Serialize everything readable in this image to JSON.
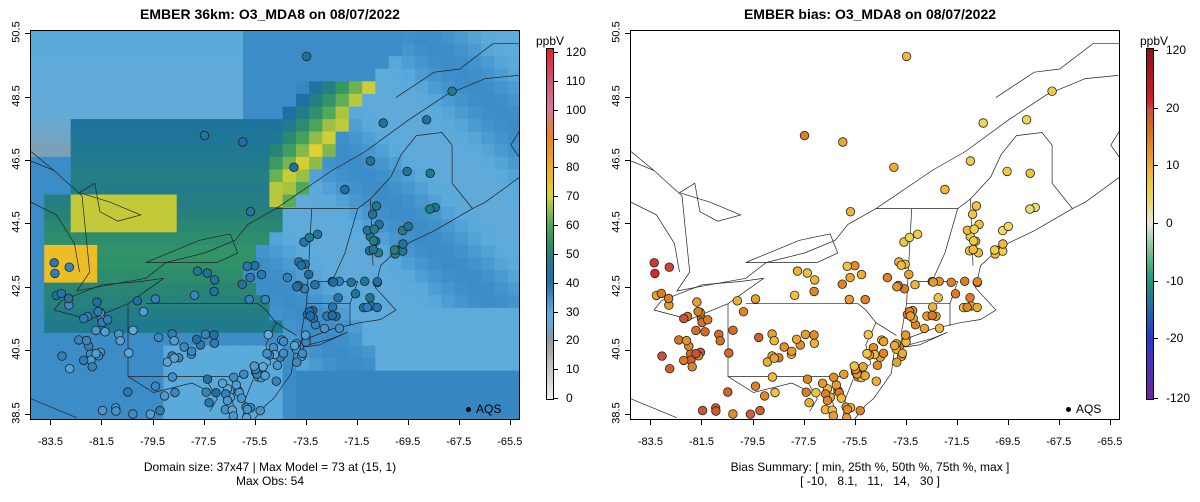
{
  "left": {
    "title": "EMBER 36km: O3_MDA8 on 08/07/2022",
    "x_ticks": [
      "-83.5",
      "-81.5",
      "-79.5",
      "-77.5",
      "-75.5",
      "-73.5",
      "-71.5",
      "-69.5",
      "-67.5",
      "-65.5"
    ],
    "y_ticks": [
      "38.5",
      "40.5",
      "42.5",
      "44.5",
      "46.5",
      "48.5",
      "50.5"
    ],
    "caption_line1": "Domain size: 37x47 | Max Model = 73 at (15, 1)",
    "caption_line2": "Max Obs: 54",
    "legend": "AQS",
    "colorbar": {
      "unit": "ppbV",
      "labels": [
        "0",
        "10",
        "20",
        "30",
        "40",
        "50",
        "60",
        "70",
        "80",
        "90",
        "100",
        "110",
        "120"
      ],
      "range": [
        0,
        120
      ]
    }
  },
  "right": {
    "title": "EMBER bias: O3_MDA8 on 08/07/2022",
    "x_ticks": [
      "-83.5",
      "-81.5",
      "-79.5",
      "-77.5",
      "-75.5",
      "-73.5",
      "-71.5",
      "-69.5",
      "-67.5",
      "-65.5"
    ],
    "y_ticks": [
      "38.5",
      "40.5",
      "42.5",
      "44.5",
      "46.5",
      "48.5",
      "50.5"
    ],
    "caption_line1": "Bias Summary: [ min, 25th %, 50th %, 75th %, max ]",
    "caption_line2": "[ -10,   8.1,   11,   14,   30 ]",
    "legend": "AQS",
    "colorbar": {
      "unit": "ppbV",
      "labels": [
        "120",
        "20",
        "10",
        "0",
        "-10",
        "-20",
        "-120"
      ]
    }
  },
  "map_data": {
    "lon_range": [
      -84.3,
      -65.1
    ],
    "lat_range": [
      38.3,
      50.6
    ],
    "bias_summary": {
      "min": -10,
      "p25": 8.1,
      "p50": 11,
      "p75": 14,
      "max": 30
    },
    "max_model": 73,
    "max_obs": 54
  }
}
